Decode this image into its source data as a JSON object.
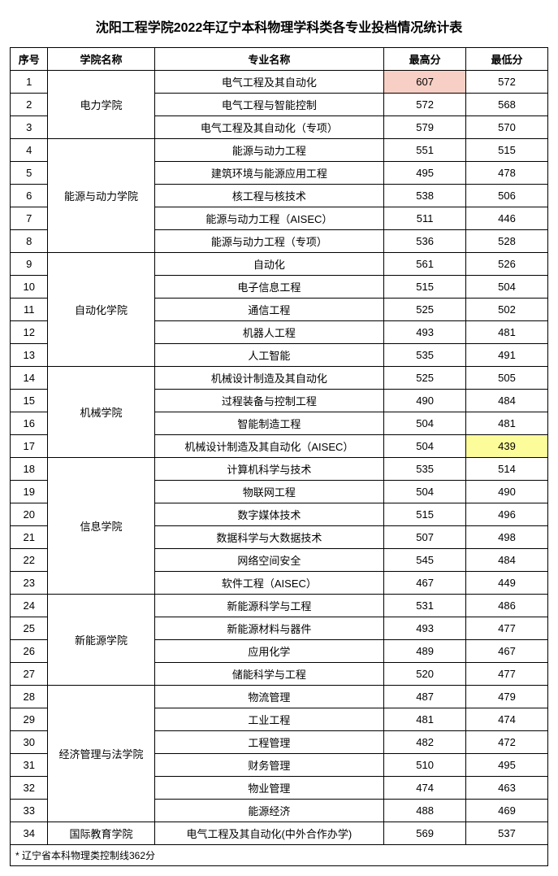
{
  "title": "沈阳工程学院2022年辽宁本科物理学科类各专业投档情况统计表",
  "columns": [
    "序号",
    "学院名称",
    "专业名称",
    "最高分",
    "最低分"
  ],
  "highlight_high_color": "#f7cfc4",
  "highlight_low_color": "#fdfc9b",
  "colleges": [
    {
      "name": "电力学院",
      "rows": [
        {
          "idx": 1,
          "major": "电气工程及其自动化",
          "high": 607,
          "low": 572,
          "highlight_high": true
        },
        {
          "idx": 2,
          "major": "电气工程与智能控制",
          "high": 572,
          "low": 568
        },
        {
          "idx": 3,
          "major": "电气工程及其自动化（专项）",
          "high": 579,
          "low": 570
        }
      ]
    },
    {
      "name": "能源与动力学院",
      "rows": [
        {
          "idx": 4,
          "major": "能源与动力工程",
          "high": 551,
          "low": 515
        },
        {
          "idx": 5,
          "major": "建筑环境与能源应用工程",
          "high": 495,
          "low": 478
        },
        {
          "idx": 6,
          "major": "核工程与核技术",
          "high": 538,
          "low": 506
        },
        {
          "idx": 7,
          "major": "能源与动力工程（AISEC）",
          "high": 511,
          "low": 446
        },
        {
          "idx": 8,
          "major": "能源与动力工程（专项）",
          "high": 536,
          "low": 528
        }
      ]
    },
    {
      "name": "自动化学院",
      "rows": [
        {
          "idx": 9,
          "major": "自动化",
          "high": 561,
          "low": 526
        },
        {
          "idx": 10,
          "major": "电子信息工程",
          "high": 515,
          "low": 504
        },
        {
          "idx": 11,
          "major": "通信工程",
          "high": 525,
          "low": 502
        },
        {
          "idx": 12,
          "major": "机器人工程",
          "high": 493,
          "low": 481
        },
        {
          "idx": 13,
          "major": "人工智能",
          "high": 535,
          "low": 491
        }
      ]
    },
    {
      "name": "机械学院",
      "rows": [
        {
          "idx": 14,
          "major": "机械设计制造及其自动化",
          "high": 525,
          "low": 505
        },
        {
          "idx": 15,
          "major": "过程装备与控制工程",
          "high": 490,
          "low": 484
        },
        {
          "idx": 16,
          "major": "智能制造工程",
          "high": 504,
          "low": 481
        },
        {
          "idx": 17,
          "major": "机械设计制造及其自动化（AISEC）",
          "high": 504,
          "low": 439,
          "highlight_low": true
        }
      ]
    },
    {
      "name": "信息学院",
      "rows": [
        {
          "idx": 18,
          "major": "计算机科学与技术",
          "high": 535,
          "low": 514
        },
        {
          "idx": 19,
          "major": "物联网工程",
          "high": 504,
          "low": 490
        },
        {
          "idx": 20,
          "major": "数字媒体技术",
          "high": 515,
          "low": 496
        },
        {
          "idx": 21,
          "major": "数据科学与大数据技术",
          "high": 507,
          "low": 498
        },
        {
          "idx": 22,
          "major": "网络空间安全",
          "high": 545,
          "low": 484
        },
        {
          "idx": 23,
          "major": "软件工程（AISEC）",
          "high": 467,
          "low": 449
        }
      ]
    },
    {
      "name": "新能源学院",
      "rows": [
        {
          "idx": 24,
          "major": "新能源科学与工程",
          "high": 531,
          "low": 486
        },
        {
          "idx": 25,
          "major": "新能源材料与器件",
          "high": 493,
          "low": 477
        },
        {
          "idx": 26,
          "major": "应用化学",
          "high": 489,
          "low": 467
        },
        {
          "idx": 27,
          "major": "储能科学与工程",
          "high": 520,
          "low": 477
        }
      ]
    },
    {
      "name": "经济管理与法学院",
      "rows": [
        {
          "idx": 28,
          "major": "物流管理",
          "high": 487,
          "low": 479
        },
        {
          "idx": 29,
          "major": "工业工程",
          "high": 481,
          "low": 474
        },
        {
          "idx": 30,
          "major": "工程管理",
          "high": 482,
          "low": 472
        },
        {
          "idx": 31,
          "major": "财务管理",
          "high": 510,
          "low": 495
        },
        {
          "idx": 32,
          "major": "物业管理",
          "high": 474,
          "low": 463
        },
        {
          "idx": 33,
          "major": "能源经济",
          "high": 488,
          "low": 469
        }
      ]
    },
    {
      "name": "国际教育学院",
      "rows": [
        {
          "idx": 34,
          "major": "电气工程及其自动化(中外合作办学)",
          "high": 569,
          "low": 537
        }
      ]
    }
  ],
  "footnote": "* 辽宁省本科物理类控制线362分"
}
